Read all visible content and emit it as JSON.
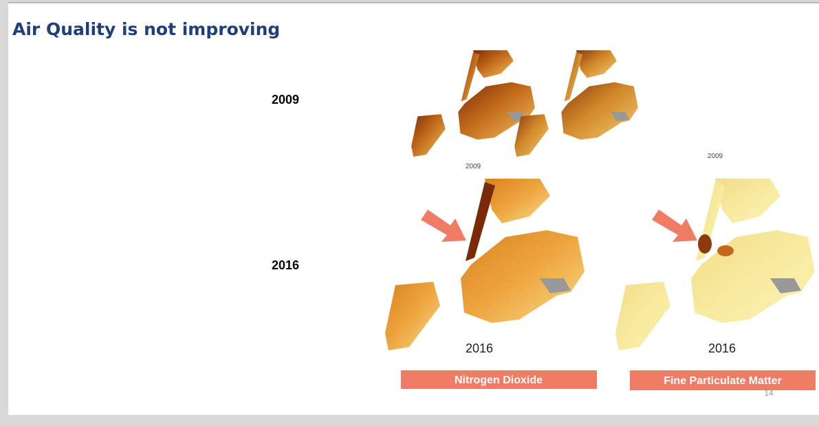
{
  "header": {
    "title": "Air Quality is not improving"
  },
  "rows": [
    {
      "label": "2009"
    },
    {
      "label": "2016"
    }
  ],
  "maps": [
    {
      "caption": "2009"
    },
    {
      "caption": "2009"
    },
    {
      "caption": "2016"
    },
    {
      "caption": "2016"
    }
  ],
  "pollutants": [
    {
      "label": "Nitrogen Dioxide"
    },
    {
      "label": "Fine Particulate Matter"
    }
  ],
  "footer": {
    "page_number": "14"
  }
}
